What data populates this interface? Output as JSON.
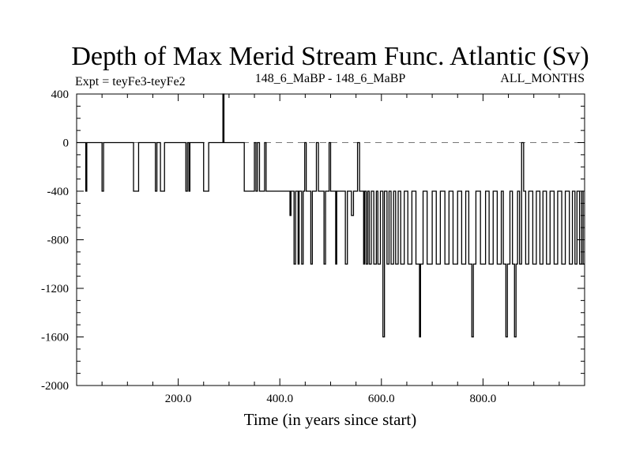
{
  "chart_data": {
    "type": "line",
    "title": "Depth of Max Merid Stream Func. Atlantic (Sv)",
    "subtitle_left": "Expt = teyFe3-teyFe2",
    "subtitle_center": "148_6_MaBP - 148_6_MaBP",
    "subtitle_right": "ALL_MONTHS",
    "xlabel": "Time (in years since start)",
    "ylabel": "",
    "xlim": [
      0,
      1000
    ],
    "ylim": [
      -2000,
      400
    ],
    "x_ticks": [
      200,
      400,
      600,
      800
    ],
    "x_tick_labels": [
      "200.0",
      "400.0",
      "600.0",
      "800.0"
    ],
    "y_ticks": [
      400,
      0,
      -400,
      -800,
      -1200,
      -1600,
      -2000
    ],
    "y_tick_labels": [
      "400",
      "0",
      "-400",
      "-800",
      "-1200",
      "-1600",
      "-2000"
    ],
    "reference_line": {
      "y": 0,
      "style": "dashed"
    },
    "series": [
      {
        "name": "teyFe3-teyFe2",
        "segments": [
          [
            0,
            0
          ],
          [
            18,
            0
          ],
          [
            18,
            -400
          ],
          [
            20,
            -400
          ],
          [
            20,
            0
          ],
          [
            50,
            0
          ],
          [
            50,
            -400
          ],
          [
            53,
            -400
          ],
          [
            53,
            0
          ],
          [
            112,
            0
          ],
          [
            112,
            -400
          ],
          [
            122,
            -400
          ],
          [
            122,
            0
          ],
          [
            155,
            0
          ],
          [
            155,
            -400
          ],
          [
            158,
            -400
          ],
          [
            158,
            0
          ],
          [
            165,
            0
          ],
          [
            165,
            -400
          ],
          [
            173,
            -400
          ],
          [
            173,
            0
          ],
          [
            215,
            0
          ],
          [
            215,
            -400
          ],
          [
            218,
            -400
          ],
          [
            218,
            0
          ],
          [
            221,
            0
          ],
          [
            221,
            -400
          ],
          [
            223,
            -400
          ],
          [
            223,
            0
          ],
          [
            250,
            0
          ],
          [
            250,
            -400
          ],
          [
            260,
            -400
          ],
          [
            260,
            0
          ],
          [
            288,
            0
          ],
          [
            288,
            400
          ],
          [
            290,
            400
          ],
          [
            290,
            0
          ],
          [
            330,
            0
          ],
          [
            330,
            -400
          ],
          [
            350,
            -400
          ],
          [
            350,
            0
          ],
          [
            353,
            0
          ],
          [
            353,
            -400
          ],
          [
            356,
            -400
          ],
          [
            356,
            0
          ],
          [
            360,
            0
          ],
          [
            360,
            -400
          ],
          [
            370,
            -400
          ],
          [
            370,
            0
          ],
          [
            373,
            0
          ],
          [
            373,
            -400
          ],
          [
            420,
            -400
          ],
          [
            420,
            -600
          ],
          [
            422,
            -600
          ],
          [
            422,
            -400
          ],
          [
            428,
            -400
          ],
          [
            428,
            -1000
          ],
          [
            431,
            -1000
          ],
          [
            431,
            -400
          ],
          [
            436,
            -400
          ],
          [
            436,
            -1000
          ],
          [
            438,
            -1000
          ],
          [
            438,
            -400
          ],
          [
            443,
            -400
          ],
          [
            443,
            -1000
          ],
          [
            446,
            -1000
          ],
          [
            446,
            -400
          ],
          [
            449,
            -400
          ],
          [
            449,
            0
          ],
          [
            452,
            0
          ],
          [
            452,
            -400
          ],
          [
            461,
            -400
          ],
          [
            461,
            -1000
          ],
          [
            464,
            -1000
          ],
          [
            464,
            -400
          ],
          [
            472,
            -400
          ],
          [
            472,
            0
          ],
          [
            476,
            0
          ],
          [
            476,
            -400
          ],
          [
            487,
            -400
          ],
          [
            487,
            -1000
          ],
          [
            490,
            -1000
          ],
          [
            490,
            -400
          ],
          [
            497,
            -400
          ],
          [
            497,
            0
          ],
          [
            500,
            0
          ],
          [
            500,
            -400
          ],
          [
            510,
            -400
          ],
          [
            510,
            -1000
          ],
          [
            512,
            -1000
          ],
          [
            512,
            -400
          ],
          [
            529,
            -400
          ],
          [
            529,
            -1000
          ],
          [
            533,
            -1000
          ],
          [
            533,
            -400
          ],
          [
            541,
            -400
          ],
          [
            541,
            -600
          ],
          [
            545,
            -600
          ],
          [
            545,
            -400
          ],
          [
            553,
            -400
          ],
          [
            553,
            0
          ],
          [
            557,
            0
          ],
          [
            557,
            -400
          ],
          [
            565,
            -400
          ],
          [
            565,
            -1000
          ],
          [
            567,
            -1000
          ],
          [
            567,
            -400
          ],
          [
            570,
            -400
          ],
          [
            570,
            -1000
          ],
          [
            573,
            -1000
          ],
          [
            573,
            -400
          ],
          [
            576,
            -400
          ],
          [
            576,
            -1000
          ],
          [
            580,
            -1000
          ],
          [
            580,
            -400
          ],
          [
            585,
            -400
          ],
          [
            585,
            -1000
          ],
          [
            590,
            -1000
          ],
          [
            590,
            -400
          ],
          [
            593,
            -400
          ],
          [
            593,
            -1000
          ],
          [
            598,
            -1000
          ],
          [
            598,
            -400
          ],
          [
            603,
            -400
          ],
          [
            603,
            -1600
          ],
          [
            606,
            -1600
          ],
          [
            606,
            -400
          ],
          [
            611,
            -400
          ],
          [
            611,
            -1000
          ],
          [
            615,
            -1000
          ],
          [
            615,
            -400
          ],
          [
            619,
            -400
          ],
          [
            619,
            -1000
          ],
          [
            624,
            -1000
          ],
          [
            624,
            -400
          ],
          [
            628,
            -400
          ],
          [
            628,
            -1000
          ],
          [
            633,
            -1000
          ],
          [
            633,
            -400
          ],
          [
            638,
            -400
          ],
          [
            638,
            -1000
          ],
          [
            645,
            -1000
          ],
          [
            645,
            -400
          ],
          [
            652,
            -400
          ],
          [
            652,
            -1000
          ],
          [
            660,
            -1000
          ],
          [
            660,
            -400
          ],
          [
            668,
            -400
          ],
          [
            668,
            -1000
          ],
          [
            675,
            -1000
          ],
          [
            675,
            -1600
          ],
          [
            677,
            -1600
          ],
          [
            677,
            -1000
          ],
          [
            682,
            -1000
          ],
          [
            682,
            -400
          ],
          [
            690,
            -400
          ],
          [
            690,
            -1000
          ],
          [
            700,
            -1000
          ],
          [
            700,
            -400
          ],
          [
            708,
            -400
          ],
          [
            708,
            -1000
          ],
          [
            716,
            -1000
          ],
          [
            716,
            -400
          ],
          [
            725,
            -400
          ],
          [
            725,
            -1000
          ],
          [
            733,
            -1000
          ],
          [
            733,
            -400
          ],
          [
            741,
            -400
          ],
          [
            741,
            -1000
          ],
          [
            750,
            -1000
          ],
          [
            750,
            -400
          ],
          [
            758,
            -400
          ],
          [
            758,
            -1000
          ],
          [
            766,
            -1000
          ],
          [
            766,
            -400
          ],
          [
            772,
            -400
          ],
          [
            772,
            -1000
          ],
          [
            778,
            -1000
          ],
          [
            778,
            -1600
          ],
          [
            781,
            -1600
          ],
          [
            781,
            -1000
          ],
          [
            786,
            -1000
          ],
          [
            786,
            -400
          ],
          [
            795,
            -400
          ],
          [
            795,
            -1000
          ],
          [
            805,
            -1000
          ],
          [
            805,
            -400
          ],
          [
            812,
            -400
          ],
          [
            812,
            -1000
          ],
          [
            820,
            -1000
          ],
          [
            820,
            -400
          ],
          [
            828,
            -400
          ],
          [
            828,
            -1000
          ],
          [
            836,
            -1000
          ],
          [
            836,
            -400
          ],
          [
            840,
            -400
          ],
          [
            840,
            -1000
          ],
          [
            845,
            -1000
          ],
          [
            845,
            -1600
          ],
          [
            848,
            -1600
          ],
          [
            848,
            -1000
          ],
          [
            853,
            -1000
          ],
          [
            853,
            -400
          ],
          [
            858,
            -400
          ],
          [
            858,
            -1000
          ],
          [
            862,
            -1000
          ],
          [
            862,
            -1600
          ],
          [
            865,
            -1600
          ],
          [
            865,
            -1000
          ],
          [
            868,
            -1000
          ],
          [
            868,
            -400
          ],
          [
            872,
            -400
          ],
          [
            872,
            -1000
          ],
          [
            876,
            -1000
          ],
          [
            876,
            0
          ],
          [
            880,
            0
          ],
          [
            880,
            -400
          ],
          [
            884,
            -400
          ],
          [
            884,
            -1000
          ],
          [
            890,
            -1000
          ],
          [
            890,
            -400
          ],
          [
            898,
            -400
          ],
          [
            898,
            -1000
          ],
          [
            905,
            -1000
          ],
          [
            905,
            -400
          ],
          [
            912,
            -400
          ],
          [
            912,
            -1000
          ],
          [
            918,
            -1000
          ],
          [
            918,
            -400
          ],
          [
            925,
            -400
          ],
          [
            925,
            -1000
          ],
          [
            932,
            -1000
          ],
          [
            932,
            -400
          ],
          [
            940,
            -400
          ],
          [
            940,
            -1000
          ],
          [
            947,
            -1000
          ],
          [
            947,
            -400
          ],
          [
            955,
            -400
          ],
          [
            955,
            -1000
          ],
          [
            962,
            -1000
          ],
          [
            962,
            -400
          ],
          [
            970,
            -400
          ],
          [
            970,
            -1000
          ],
          [
            976,
            -1000
          ],
          [
            976,
            -400
          ],
          [
            981,
            -400
          ],
          [
            981,
            -1000
          ],
          [
            985,
            -1000
          ],
          [
            985,
            -400
          ],
          [
            990,
            -400
          ],
          [
            990,
            -1000
          ],
          [
            994,
            -1000
          ],
          [
            994,
            -400
          ],
          [
            997,
            -400
          ],
          [
            997,
            -1000
          ],
          [
            1000,
            -1000
          ]
        ]
      }
    ]
  }
}
